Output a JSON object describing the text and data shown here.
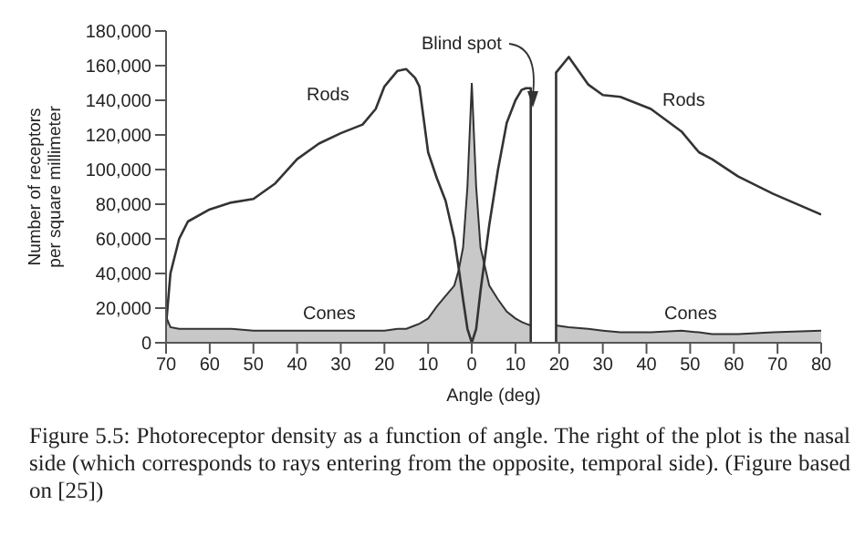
{
  "chart_data": {
    "type": "line",
    "xlabel": "Angle (deg)",
    "ylabel": "Number of receptors\nper square millimeter",
    "x": [
      -70,
      -69,
      -67,
      -65,
      -60,
      -55,
      -50,
      -45,
      -40,
      -35,
      -30,
      -25,
      -22,
      -20,
      -17,
      -15,
      -13,
      -12,
      -10,
      -8,
      -6,
      -4,
      -3,
      -2,
      -1,
      0,
      1,
      2,
      4,
      6,
      8,
      10,
      11.4,
      12.4,
      13.5,
      13.5,
      16,
      19.3,
      19.3,
      22.2,
      26.7,
      30,
      34,
      41,
      48,
      52,
      55,
      61,
      69,
      80
    ],
    "series": [
      {
        "color": "#333333",
        "values": [
          10000,
          40000,
          60000,
          70000,
          77000,
          81000,
          83000,
          92000,
          106000,
          115000,
          121000,
          126000,
          135000,
          148000,
          157000,
          158000,
          153000,
          148000,
          110000,
          95000,
          82000,
          60000,
          43000,
          25000,
          8000,
          0,
          8000,
          30000,
          68000,
          100000,
          127000,
          140000,
          146000,
          147000,
          147000,
          0,
          null,
          0,
          156000,
          165000,
          149000,
          143000,
          142000,
          135000,
          122000,
          110000,
          106000,
          96000,
          86000,
          74000
        ]
      },
      {
        "type": "area",
        "color": "#c8c8c8",
        "values": [
          15000,
          9000,
          8000,
          8000,
          8000,
          8000,
          7000,
          7000,
          7000,
          7000,
          7000,
          7000,
          7000,
          7000,
          8000,
          8000,
          10000,
          11000,
          14000,
          21000,
          27000,
          33000,
          42000,
          55000,
          90000,
          150000,
          90000,
          55000,
          33000,
          25000,
          18000,
          14000,
          12000,
          11000,
          10000,
          10000,
          null,
          10000,
          10000,
          9000,
          8000,
          7000,
          6000,
          6000,
          7000,
          6000,
          5000,
          5000,
          6000,
          7000
        ]
      }
    ],
    "xlim": [
      -70,
      80
    ],
    "xticks": [
      {
        "value": -70,
        "label": "70"
      },
      {
        "value": -60,
        "label": "60"
      },
      {
        "value": -50,
        "label": "50"
      },
      {
        "value": -40,
        "label": "40"
      },
      {
        "value": -30,
        "label": "30"
      },
      {
        "value": -20,
        "label": "20"
      },
      {
        "value": -10,
        "label": "10"
      },
      0,
      10,
      20,
      30,
      40,
      50,
      60,
      70,
      80
    ],
    "ylim": [
      0,
      180000
    ],
    "yticks": [
      {
        "value": 0,
        "label": "0"
      },
      {
        "value": 20000,
        "label": "20,000"
      },
      {
        "value": 40000,
        "label": "40,000"
      },
      {
        "value": 60000,
        "label": "60,000"
      },
      {
        "value": 80000,
        "label": "80,000"
      },
      {
        "value": 100000,
        "label": "100,000"
      },
      {
        "value": 120000,
        "label": "120,000"
      },
      {
        "value": 140000,
        "label": "140,000"
      },
      {
        "value": 160000,
        "label": "160,000"
      },
      {
        "value": 180000,
        "label": "180,000"
      }
    ],
    "annotations": [
      "Rods",
      "Rods",
      "Cones",
      "Cones",
      "Blind spot",
      "Figure 5.5: Photoreceptor density as a function of angle.  The right of the plot is the nasal side (which corresponds to rays entering from the opposite, temporal side).  (Figure based on [25])"
    ],
    "grid": false,
    "legend": false,
    "marker": "none",
    "line_style": "solid"
  }
}
